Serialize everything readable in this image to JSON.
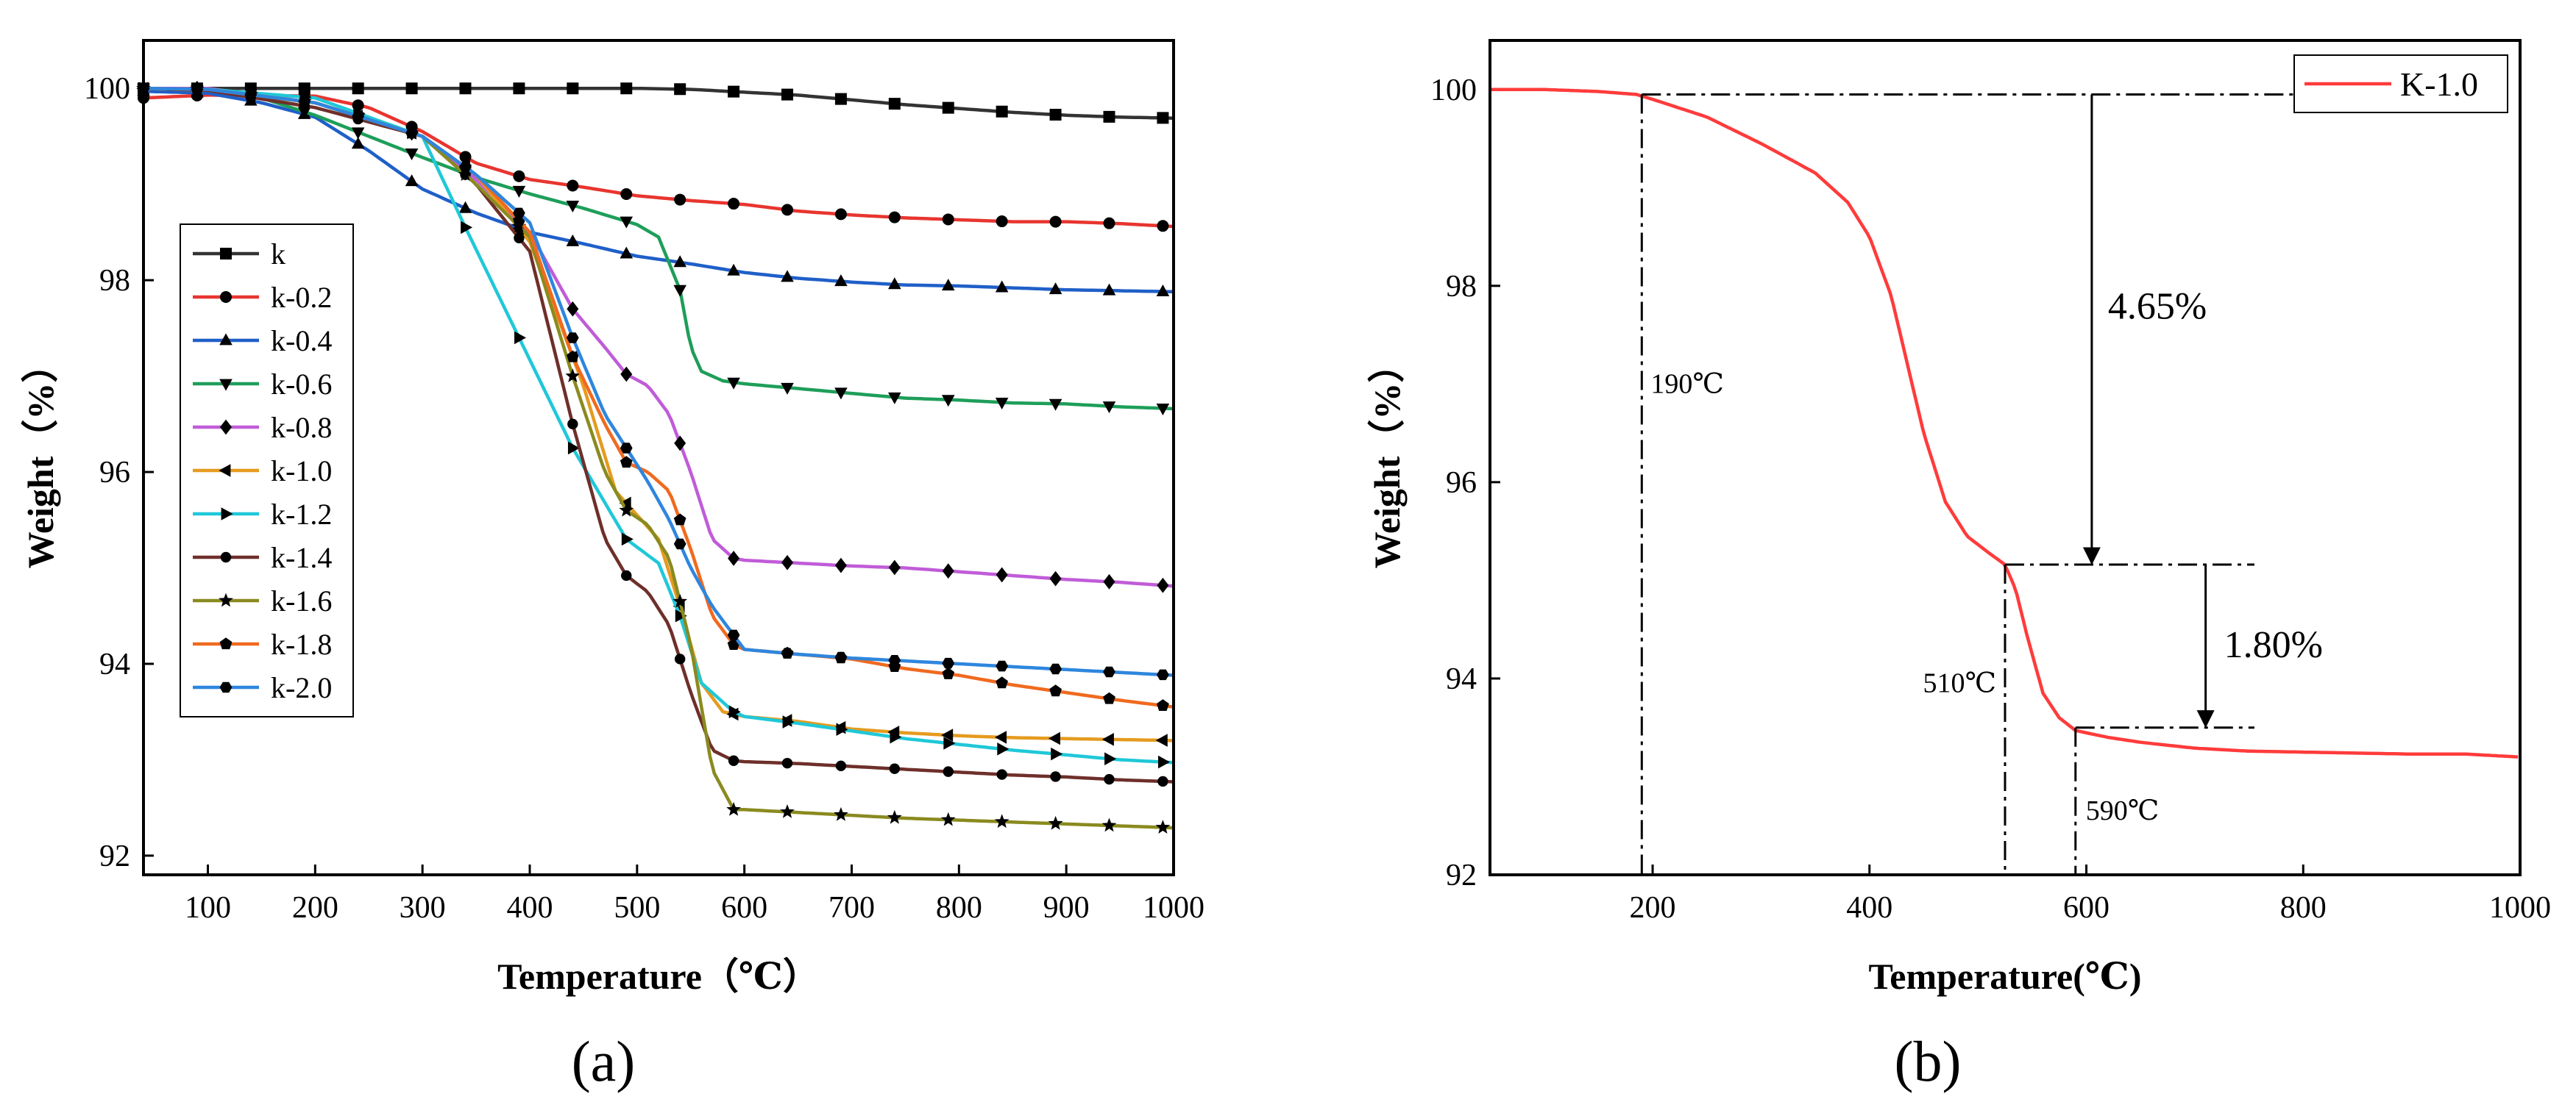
{
  "figure_labels": {
    "a": "(a)",
    "b": "(b)"
  },
  "chart_data": [
    {
      "type": "line",
      "panel": "a",
      "title": "",
      "xlabel": "Temperature（℃）",
      "ylabel": "Weight（%）",
      "xlim": [
        40,
        1000
      ],
      "ylim": [
        91.8,
        100.5
      ],
      "xticks": [
        100,
        200,
        300,
        400,
        500,
        600,
        700,
        800,
        900,
        1000
      ],
      "yticks": [
        92,
        94,
        96,
        98,
        100
      ],
      "legend_position": "middle-left",
      "series": [
        {
          "name": "k",
          "color": "#333333",
          "marker": "square",
          "x": [
            40,
            100,
            200,
            300,
            400,
            500,
            550,
            600,
            650,
            700,
            750,
            800,
            850,
            900,
            950,
            1000
          ],
          "y": [
            100,
            100,
            100,
            100,
            100,
            100,
            99.99,
            99.96,
            99.93,
            99.88,
            99.83,
            99.79,
            99.75,
            99.72,
            99.7,
            99.69
          ]
        },
        {
          "name": "k-0.2",
          "color": "#e8352f",
          "marker": "circle",
          "x": [
            40,
            100,
            200,
            250,
            300,
            350,
            400,
            450,
            500,
            550,
            600,
            650,
            700,
            750,
            800,
            850,
            900,
            950,
            1000
          ],
          "y": [
            99.9,
            99.93,
            99.92,
            99.8,
            99.55,
            99.22,
            99.05,
            98.97,
            98.88,
            98.83,
            98.79,
            98.72,
            98.68,
            98.65,
            98.63,
            98.61,
            98.61,
            98.59,
            98.56
          ]
        },
        {
          "name": "k-0.4",
          "color": "#1f5fc8",
          "marker": "triangle-up",
          "x": [
            40,
            100,
            150,
            200,
            250,
            300,
            350,
            400,
            450,
            500,
            550,
            600,
            650,
            700,
            750,
            800,
            850,
            900,
            950,
            1000
          ],
          "y": [
            99.97,
            99.95,
            99.85,
            99.7,
            99.35,
            98.95,
            98.7,
            98.5,
            98.38,
            98.25,
            98.17,
            98.08,
            98.02,
            97.98,
            97.95,
            97.94,
            97.92,
            97.9,
            97.89,
            97.88
          ]
        },
        {
          "name": "k-0.6",
          "color": "#1e9e5a",
          "marker": "triangle-down",
          "x": [
            40,
            100,
            150,
            200,
            250,
            300,
            350,
            400,
            450,
            500,
            520,
            540,
            550,
            560,
            580,
            600,
            650,
            700,
            750,
            800,
            850,
            900,
            950,
            1000
          ],
          "y": [
            100,
            99.98,
            99.9,
            99.72,
            99.5,
            99.28,
            99.07,
            98.9,
            98.75,
            98.58,
            98.45,
            97.9,
            97.3,
            97.05,
            96.95,
            96.92,
            96.87,
            96.82,
            96.77,
            96.75,
            96.72,
            96.71,
            96.68,
            96.66
          ]
        },
        {
          "name": "k-0.8",
          "color": "#c05cd8",
          "marker": "diamond",
          "x": [
            40,
            100,
            200,
            300,
            350,
            400,
            440,
            470,
            490,
            510,
            530,
            550,
            570,
            590,
            600,
            650,
            700,
            750,
            800,
            850,
            900,
            950,
            1000
          ],
          "y": [
            100,
            100,
            99.85,
            99.5,
            99.05,
            98.5,
            97.7,
            97.3,
            97.02,
            96.9,
            96.6,
            96.0,
            95.3,
            95.1,
            95.08,
            95.05,
            95.02,
            95.0,
            94.96,
            94.92,
            94.88,
            94.85,
            94.81
          ]
        },
        {
          "name": "k-1.0",
          "color": "#e59b1f",
          "marker": "triangle-left",
          "x": [
            40,
            100,
            200,
            300,
            350,
            400,
            450,
            480,
            500,
            520,
            540,
            560,
            580,
            600,
            650,
            700,
            750,
            800,
            850,
            900,
            950,
            1000
          ],
          "y": [
            100,
            99.98,
            99.85,
            99.5,
            99.1,
            98.4,
            96.9,
            95.8,
            95.55,
            95.3,
            94.6,
            93.8,
            93.5,
            93.45,
            93.4,
            93.32,
            93.28,
            93.25,
            93.23,
            93.22,
            93.21,
            93.2
          ]
        },
        {
          "name": "k-1.2",
          "color": "#1fc8d8",
          "marker": "triangle-right",
          "x": [
            40,
            100,
            200,
            300,
            340,
            390,
            440,
            490,
            520,
            540,
            560,
            590,
            600,
            650,
            700,
            750,
            800,
            850,
            900,
            950,
            1000
          ],
          "y": [
            100,
            99.99,
            99.9,
            99.5,
            98.55,
            97.4,
            96.25,
            95.3,
            95.05,
            94.5,
            93.8,
            93.5,
            93.45,
            93.38,
            93.3,
            93.22,
            93.16,
            93.1,
            93.05,
            93.0,
            92.97
          ]
        },
        {
          "name": "k-1.4",
          "color": "#6e2f2a",
          "marker": "circle-small",
          "x": [
            40,
            100,
            200,
            300,
            350,
            400,
            440,
            470,
            490,
            510,
            530,
            550,
            570,
            590,
            600,
            650,
            700,
            750,
            800,
            850,
            900,
            950,
            1000
          ],
          "y": [
            100,
            99.98,
            99.8,
            99.5,
            99.0,
            98.3,
            96.5,
            95.3,
            94.92,
            94.75,
            94.4,
            93.7,
            93.1,
            92.99,
            92.98,
            92.96,
            92.93,
            92.9,
            92.87,
            92.84,
            92.82,
            92.79,
            92.77
          ]
        },
        {
          "name": "k-1.6",
          "color": "#8a8a1f",
          "marker": "star",
          "x": [
            40,
            100,
            200,
            300,
            350,
            400,
            440,
            470,
            490,
            510,
            530,
            550,
            570,
            590,
            600,
            650,
            700,
            750,
            800,
            850,
            900,
            950,
            1000
          ],
          "y": [
            100,
            99.99,
            99.85,
            99.5,
            99.0,
            98.45,
            97.0,
            96.0,
            95.6,
            95.45,
            95.1,
            94.2,
            92.9,
            92.48,
            92.48,
            92.45,
            92.42,
            92.39,
            92.37,
            92.35,
            92.33,
            92.31,
            92.29
          ]
        },
        {
          "name": "k-1.8",
          "color": "#f06a1f",
          "marker": "pentagon",
          "x": [
            40,
            100,
            200,
            300,
            350,
            400,
            440,
            470,
            490,
            510,
            530,
            550,
            570,
            590,
            600,
            650,
            700,
            750,
            800,
            850,
            900,
            950,
            1000
          ],
          "y": [
            100,
            99.99,
            99.85,
            99.5,
            99.1,
            98.5,
            97.2,
            96.5,
            96.1,
            96.0,
            95.8,
            95.2,
            94.5,
            94.2,
            94.15,
            94.1,
            94.05,
            93.95,
            93.88,
            93.78,
            93.7,
            93.62,
            93.55
          ]
        },
        {
          "name": "k-2.0",
          "color": "#2e86de",
          "marker": "hexagon",
          "x": [
            40,
            100,
            200,
            300,
            350,
            400,
            440,
            470,
            490,
            510,
            530,
            550,
            570,
            590,
            600,
            650,
            700,
            750,
            800,
            850,
            900,
            950,
            1000
          ],
          "y": [
            100,
            99.99,
            99.85,
            99.5,
            99.1,
            98.6,
            97.4,
            96.6,
            96.25,
            95.9,
            95.5,
            95.0,
            94.6,
            94.3,
            94.15,
            94.1,
            94.06,
            94.03,
            94.0,
            93.97,
            93.94,
            93.91,
            93.88
          ]
        }
      ]
    },
    {
      "type": "line",
      "panel": "b",
      "title": "",
      "xlabel": "Temperature(℃)",
      "ylabel": "Weight（%）",
      "xlim": [
        50,
        1000
      ],
      "ylim": [
        92,
        100.5
      ],
      "xticks": [
        200,
        400,
        600,
        800,
        1000
      ],
      "yticks": [
        92,
        94,
        96,
        98,
        100
      ],
      "legend_position": "top-right",
      "series": [
        {
          "name": "K-1.0",
          "color": "#ff3b3b",
          "x": [
            50,
            100,
            150,
            185,
            200,
            250,
            300,
            350,
            380,
            400,
            420,
            450,
            470,
            490,
            510,
            525,
            535,
            545,
            560,
            575,
            590,
            620,
            650,
            700,
            750,
            800,
            850,
            900,
            950,
            1000
          ],
          "y": [
            100,
            100,
            99.98,
            99.95,
            99.9,
            99.72,
            99.45,
            99.15,
            98.85,
            98.5,
            97.9,
            96.5,
            95.8,
            95.45,
            95.28,
            95.16,
            94.9,
            94.45,
            93.85,
            93.6,
            93.47,
            93.4,
            93.35,
            93.29,
            93.26,
            93.25,
            93.24,
            93.23,
            93.23,
            93.2
          ]
        }
      ],
      "annotations": {
        "onset": "190℃",
        "step1_end": "510℃",
        "step2_end": "590℃",
        "loss1": "4.65%",
        "loss2": "1.80%",
        "onset_x": 190,
        "step1_x": 525,
        "step2_x": 590,
        "level_start": 99.95,
        "level_mid": 95.16,
        "level_end": 93.5
      }
    }
  ]
}
